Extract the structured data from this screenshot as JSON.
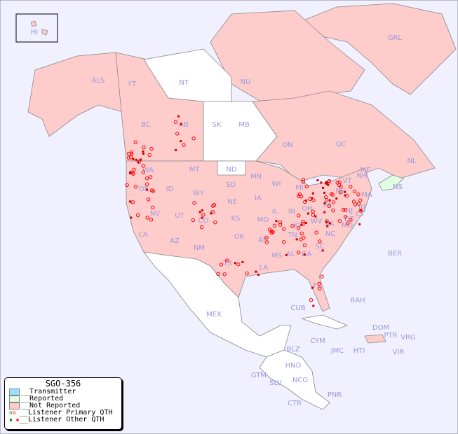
{
  "title": "SGO-356",
  "colors": {
    "ocean": "#f0f0ff",
    "not_reported": "#ffcccc",
    "reported": "#e0ffe0",
    "transmitter": "#99ddff",
    "unmapped": "#ffffff",
    "marker": "#ff0000",
    "primary_marker_reported": "#008800"
  },
  "legend": [
    {
      "label": "__Transmitter",
      "type": "swatch",
      "color": "#99ddff"
    },
    {
      "label": "__Reported",
      "type": "swatch",
      "color": "#e0ffe0"
    },
    {
      "label": "__Not Reported",
      "type": "swatch",
      "color": "#ffcccc"
    },
    {
      "label": "__Listener Primary QTH",
      "type": "circle"
    },
    {
      "label": "__Listener Other QTH",
      "type": "square"
    }
  ],
  "regions": [
    {
      "code": "HI",
      "status": "not_reported"
    },
    {
      "code": "ALS",
      "status": "not_reported"
    },
    {
      "code": "YT",
      "status": "not_reported"
    },
    {
      "code": "NT",
      "status": "unmapped"
    },
    {
      "code": "NU",
      "status": "not_reported"
    },
    {
      "code": "GRL",
      "status": "not_reported"
    },
    {
      "code": "BC",
      "status": "not_reported"
    },
    {
      "code": "AB",
      "status": "not_reported"
    },
    {
      "code": "SK",
      "status": "unmapped"
    },
    {
      "code": "MB",
      "status": "unmapped"
    },
    {
      "code": "ON",
      "status": "not_reported"
    },
    {
      "code": "QC",
      "status": "not_reported"
    },
    {
      "code": "NL",
      "status": "not_reported"
    },
    {
      "code": "NS",
      "status": "reported"
    },
    {
      "code": "WA",
      "status": "not_reported"
    },
    {
      "code": "OR",
      "status": "not_reported"
    },
    {
      "code": "ID",
      "status": "not_reported"
    },
    {
      "code": "MT",
      "status": "not_reported"
    },
    {
      "code": "WY",
      "status": "not_reported"
    },
    {
      "code": "ND",
      "status": "unmapped"
    },
    {
      "code": "SD",
      "status": "not_reported"
    },
    {
      "code": "MN",
      "status": "not_reported"
    },
    {
      "code": "WI",
      "status": "not_reported"
    },
    {
      "code": "MI",
      "status": "not_reported"
    },
    {
      "code": "NE",
      "status": "not_reported"
    },
    {
      "code": "IA",
      "status": "not_reported"
    },
    {
      "code": "IL",
      "status": "not_reported"
    },
    {
      "code": "IN",
      "status": "not_reported"
    },
    {
      "code": "OH",
      "status": "not_reported"
    },
    {
      "code": "PA",
      "status": "not_reported"
    },
    {
      "code": "NY",
      "status": "not_reported"
    },
    {
      "code": "VT",
      "status": "not_reported"
    },
    {
      "code": "NH",
      "status": "not_reported"
    },
    {
      "code": "ME",
      "status": "not_reported"
    },
    {
      "code": "MA",
      "status": "not_reported"
    },
    {
      "code": "RI",
      "status": "not_reported"
    },
    {
      "code": "CT",
      "status": "not_reported"
    },
    {
      "code": "NJ",
      "status": "not_reported"
    },
    {
      "code": "DE",
      "status": "not_reported"
    },
    {
      "code": "MD",
      "status": "not_reported"
    },
    {
      "code": "NV",
      "status": "not_reported"
    },
    {
      "code": "UT",
      "status": "not_reported"
    },
    {
      "code": "CO",
      "status": "not_reported"
    },
    {
      "code": "KS",
      "status": "not_reported"
    },
    {
      "code": "MO",
      "status": "not_reported"
    },
    {
      "code": "KY",
      "status": "not_reported"
    },
    {
      "code": "WV",
      "status": "not_reported"
    },
    {
      "code": "VA",
      "status": "not_reported"
    },
    {
      "code": "CA",
      "status": "not_reported"
    },
    {
      "code": "AZ",
      "status": "not_reported"
    },
    {
      "code": "NM",
      "status": "not_reported"
    },
    {
      "code": "OK",
      "status": "not_reported"
    },
    {
      "code": "AR",
      "status": "not_reported"
    },
    {
      "code": "TN",
      "status": "not_reported"
    },
    {
      "code": "NC",
      "status": "not_reported"
    },
    {
      "code": "SC",
      "status": "not_reported"
    },
    {
      "code": "TX",
      "status": "not_reported"
    },
    {
      "code": "LA",
      "status": "not_reported"
    },
    {
      "code": "MS",
      "status": "not_reported"
    },
    {
      "code": "AL",
      "status": "not_reported"
    },
    {
      "code": "GA",
      "status": "not_reported"
    },
    {
      "code": "FL",
      "status": "not_reported"
    },
    {
      "code": "BER",
      "status": "unmapped"
    },
    {
      "code": "BAH",
      "status": "unmapped"
    },
    {
      "code": "CUB",
      "status": "unmapped"
    },
    {
      "code": "MEX",
      "status": "unmapped"
    },
    {
      "code": "DOM",
      "status": "not_reported"
    },
    {
      "code": "PTR",
      "status": "not_reported"
    },
    {
      "code": "VRG",
      "status": "unmapped"
    },
    {
      "code": "CYM",
      "status": "not_reported"
    },
    {
      "code": "JMC",
      "status": "unmapped"
    },
    {
      "code": "HTI",
      "status": "unmapped"
    },
    {
      "code": "VIR",
      "status": "unmapped"
    },
    {
      "code": "BLZ",
      "status": "unmapped"
    },
    {
      "code": "HND",
      "status": "unmapped"
    },
    {
      "code": "GTM",
      "status": "unmapped"
    },
    {
      "code": "SLV",
      "status": "unmapped"
    },
    {
      "code": "NCG",
      "status": "unmapped"
    },
    {
      "code": "CTR",
      "status": "unmapped"
    },
    {
      "code": "PNR",
      "status": "unmapped"
    }
  ]
}
